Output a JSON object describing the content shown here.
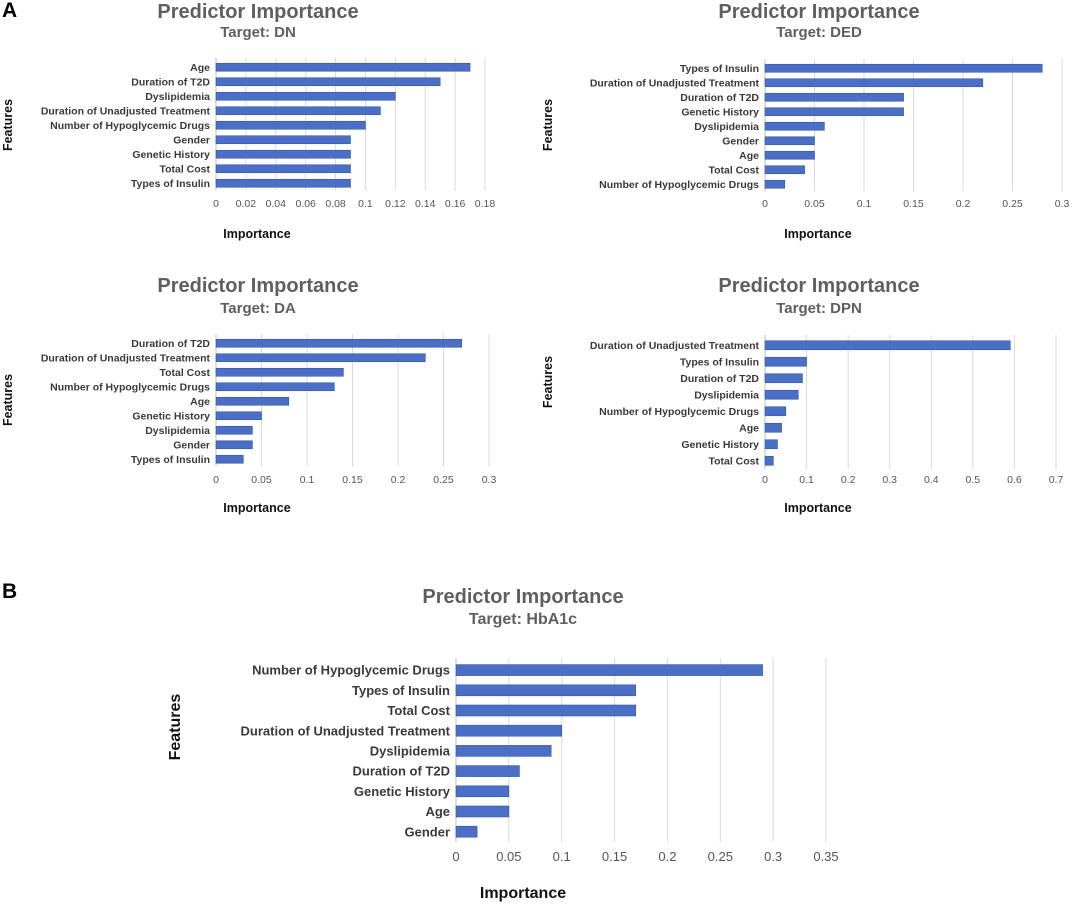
{
  "panel_labels": {
    "a": "A",
    "b": "B"
  },
  "colors": {
    "bar": "#4a6fc4",
    "bar_edge": "#3558ad",
    "grid": "#d9d9d9",
    "title": "#5f5f5f"
  },
  "chart_data": [
    {
      "type": "bar",
      "orientation": "horizontal",
      "title": "Predictor Importance",
      "subtitle": "Target: DN",
      "xlabel": "Importance",
      "ylabel": "Features",
      "categories": [
        "Age",
        "Duration of  T2D",
        "Dyslipidemia",
        "Duration of  Unadjusted Treatment",
        "Number of Hypoglycemic Drugs",
        "Gender",
        "Genetic History",
        "Total Cost",
        "Types of Insulin"
      ],
      "values": [
        0.17,
        0.15,
        0.12,
        0.11,
        0.1,
        0.09,
        0.09,
        0.09,
        0.09
      ],
      "xticks": [
        "0",
        "0.02",
        "0.04",
        "0.06",
        "0.08",
        "0.1",
        "0.12",
        "0.14",
        "0.16",
        "0.18"
      ],
      "xlim": [
        0,
        0.18
      ],
      "grid": true
    },
    {
      "type": "bar",
      "orientation": "horizontal",
      "title": "Predictor Importance",
      "subtitle": "Target: DED",
      "xlabel": "Importance",
      "ylabel": "Features",
      "categories": [
        "Types of Insulin",
        "Duration of  Unadjusted Treatment",
        "Duration of  T2D",
        "Genetic History",
        "Dyslipidemia",
        "Gender",
        "Age",
        "Total Cost",
        "Number of Hypoglycemic Drugs"
      ],
      "values": [
        0.28,
        0.22,
        0.14,
        0.14,
        0.06,
        0.05,
        0.05,
        0.04,
        0.02
      ],
      "xticks": [
        "0",
        "0.05",
        "0.1",
        "0.15",
        "0.2",
        "0.25",
        "0.3"
      ],
      "xlim": [
        0,
        0.3
      ],
      "grid": true
    },
    {
      "type": "bar",
      "orientation": "horizontal",
      "title": "Predictor Importance",
      "subtitle": "Target: DA",
      "xlabel": "Importance",
      "ylabel": "Features",
      "categories": [
        "Duration of  T2D",
        "Duration of  Unadjusted Treatment",
        "Total Cost",
        "Number of Hypoglycemic Drugs",
        "Age",
        "Genetic History",
        "Dyslipidemia",
        "Gender",
        "Types of Insulin"
      ],
      "values": [
        0.27,
        0.23,
        0.14,
        0.13,
        0.08,
        0.05,
        0.04,
        0.04,
        0.03
      ],
      "xticks": [
        "0",
        "0.05",
        "0.1",
        "0.15",
        "0.2",
        "0.25",
        "0.3"
      ],
      "xlim": [
        0,
        0.3
      ],
      "grid": true
    },
    {
      "type": "bar",
      "orientation": "horizontal",
      "title": "Predictor Importance",
      "subtitle": "Target: DPN",
      "xlabel": "Importance",
      "ylabel": "Features",
      "categories": [
        "Duration of  Unadjusted Treatment",
        "Types of Insulin",
        "Duration of  T2D",
        "Dyslipidemia",
        "Number of Hypoglycemic Drugs",
        "Age",
        "Genetic History",
        "Total Cost"
      ],
      "values": [
        0.59,
        0.1,
        0.09,
        0.08,
        0.05,
        0.04,
        0.03,
        0.02
      ],
      "xticks": [
        "0",
        "0.1",
        "0.2",
        "0.3",
        "0.4",
        "0.5",
        "0.6",
        "0.7"
      ],
      "xlim": [
        0,
        0.7
      ],
      "grid": true
    },
    {
      "type": "bar",
      "orientation": "horizontal",
      "title": "Predictor Importance",
      "subtitle": "Target: HbA1c",
      "xlabel": "Importance",
      "ylabel": "Features",
      "categories": [
        "Number of Hypoglycemic Drugs",
        "Types of Insulin",
        "Total Cost",
        "Duration of  Unadjusted Treatment",
        "Dyslipidemia",
        "Duration of  T2D",
        "Genetic History",
        "Age",
        "Gender"
      ],
      "values": [
        0.29,
        0.17,
        0.17,
        0.1,
        0.09,
        0.06,
        0.05,
        0.05,
        0.02
      ],
      "xticks": [
        "0",
        "0.05",
        "0.1",
        "0.15",
        "0.2",
        "0.25",
        "0.3",
        "0.35"
      ],
      "xlim": [
        0,
        0.35
      ],
      "grid": true
    }
  ]
}
